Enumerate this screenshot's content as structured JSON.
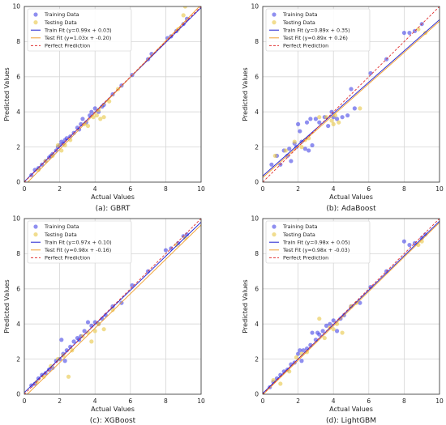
{
  "chart_data": [
    {
      "type": "scatter",
      "caption": "(a): GBRT",
      "xlabel": "Actual Values",
      "ylabel": "Predicted Values",
      "xlim": [
        0,
        10
      ],
      "ylim": [
        0,
        10
      ],
      "xticks": [
        0,
        2,
        4,
        6,
        8,
        10
      ],
      "yticks": [
        0,
        2,
        4,
        6,
        8,
        10
      ],
      "grid": true,
      "legend_position": "top-left",
      "series": [
        {
          "name": "Training Data",
          "kind": "scatter",
          "color": "#4a4ae6",
          "points": [
            [
              0.4,
              0.4
            ],
            [
              0.6,
              0.7
            ],
            [
              0.8,
              0.8
            ],
            [
              1.0,
              1.0
            ],
            [
              1.2,
              1.2
            ],
            [
              1.4,
              1.4
            ],
            [
              1.6,
              1.6
            ],
            [
              1.8,
              1.8
            ],
            [
              1.9,
              2.0
            ],
            [
              2.0,
              2.1
            ],
            [
              2.1,
              2.3
            ],
            [
              2.2,
              2.2
            ],
            [
              2.4,
              2.5
            ],
            [
              2.6,
              2.6
            ],
            [
              2.8,
              2.8
            ],
            [
              3.0,
              3.1
            ],
            [
              3.2,
              3.3
            ],
            [
              3.3,
              3.6
            ],
            [
              3.5,
              3.4
            ],
            [
              3.7,
              3.8
            ],
            [
              3.8,
              4.0
            ],
            [
              4.0,
              4.2
            ],
            [
              4.2,
              4.0
            ],
            [
              4.4,
              4.3
            ],
            [
              4.5,
              4.4
            ],
            [
              5.0,
              5.0
            ],
            [
              5.5,
              5.5
            ],
            [
              6.1,
              6.1
            ],
            [
              7.0,
              7.0
            ],
            [
              7.2,
              7.3
            ],
            [
              8.1,
              8.2
            ],
            [
              8.3,
              8.3
            ],
            [
              8.6,
              8.6
            ],
            [
              9.0,
              9.0
            ],
            [
              9.2,
              9.3
            ],
            [
              2.3,
              2.4
            ],
            [
              3.1,
              3.0
            ],
            [
              1.5,
              1.5
            ]
          ]
        },
        {
          "name": "Testing Data",
          "kind": "scatter",
          "color": "#e8c84a",
          "points": [
            [
              0.8,
              0.7
            ],
            [
              1.2,
              1.2
            ],
            [
              1.6,
              1.5
            ],
            [
              1.9,
              2.1
            ],
            [
              2.1,
              1.8
            ],
            [
              2.3,
              2.1
            ],
            [
              2.6,
              2.4
            ],
            [
              3.4,
              3.3
            ],
            [
              3.6,
              3.2
            ],
            [
              3.9,
              3.7
            ],
            [
              4.1,
              3.8
            ],
            [
              4.2,
              4.1
            ],
            [
              4.3,
              3.6
            ],
            [
              4.5,
              3.7
            ],
            [
              4.8,
              4.6
            ],
            [
              5.3,
              5.3
            ],
            [
              8.7,
              8.7
            ],
            [
              9.0,
              9.5
            ],
            [
              9.1,
              10.0
            ]
          ]
        },
        {
          "name": "Train Fit (y=0.99x + 0.03)",
          "kind": "line",
          "color": "#1f1fd0",
          "slope": 0.99,
          "intercept": 0.03,
          "dash": "solid"
        },
        {
          "name": "Test Fit (y=1.03x + -0.20)",
          "kind": "line",
          "color": "#f0a030",
          "slope": 1.03,
          "intercept": -0.2,
          "dash": "solid"
        },
        {
          "name": "Perfect Prediction",
          "kind": "line",
          "color": "#e03030",
          "slope": 1.0,
          "intercept": 0.0,
          "dash": "dashed"
        }
      ]
    },
    {
      "type": "scatter",
      "caption": "(b): AdaBoost",
      "xlabel": "Actual Values",
      "ylabel": "Predicted Values",
      "xlim": [
        0,
        10
      ],
      "ylim": [
        0,
        10
      ],
      "xticks": [
        0,
        2,
        4,
        6,
        8,
        10
      ],
      "yticks": [
        0,
        2,
        4,
        6,
        8,
        10
      ],
      "grid": true,
      "legend_position": "top-left",
      "series": [
        {
          "name": "Training Data",
          "kind": "scatter",
          "color": "#4a4ae6",
          "points": [
            [
              0.5,
              1.0
            ],
            [
              0.8,
              1.5
            ],
            [
              1.0,
              1.0
            ],
            [
              1.2,
              1.8
            ],
            [
              1.4,
              1.5
            ],
            [
              1.6,
              1.2
            ],
            [
              1.8,
              2.2
            ],
            [
              1.9,
              2.0
            ],
            [
              2.0,
              3.3
            ],
            [
              2.1,
              2.9
            ],
            [
              2.2,
              2.3
            ],
            [
              2.4,
              1.9
            ],
            [
              2.5,
              3.4
            ],
            [
              2.7,
              3.6
            ],
            [
              2.8,
              2.1
            ],
            [
              3.0,
              3.6
            ],
            [
              3.2,
              3.4
            ],
            [
              3.5,
              3.7
            ],
            [
              3.7,
              3.2
            ],
            [
              3.9,
              4.0
            ],
            [
              4.0,
              3.7
            ],
            [
              4.2,
              3.6
            ],
            [
              4.5,
              3.7
            ],
            [
              4.8,
              3.8
            ],
            [
              5.0,
              5.3
            ],
            [
              5.2,
              4.2
            ],
            [
              6.1,
              6.2
            ],
            [
              7.0,
              7.0
            ],
            [
              8.0,
              8.5
            ],
            [
              8.3,
              8.5
            ],
            [
              8.6,
              8.6
            ],
            [
              9.0,
              9.0
            ],
            [
              2.6,
              1.8
            ],
            [
              1.5,
              1.9
            ]
          ]
        },
        {
          "name": "Testing Data",
          "kind": "scatter",
          "color": "#e8c84a",
          "points": [
            [
              0.7,
              1.5
            ],
            [
              1.3,
              1.8
            ],
            [
              1.8,
              2.3
            ],
            [
              2.2,
              2.0
            ],
            [
              2.4,
              2.4
            ],
            [
              2.6,
              2.5
            ],
            [
              3.2,
              3.7
            ],
            [
              3.6,
              3.7
            ],
            [
              3.9,
              3.5
            ],
            [
              4.0,
              3.3
            ],
            [
              4.1,
              3.8
            ],
            [
              4.3,
              3.4
            ],
            [
              5.5,
              4.2
            ],
            [
              8.8,
              8.7
            ],
            [
              9.2,
              8.5
            ]
          ]
        },
        {
          "name": "Train Fit (y=0.89x + 0.35)",
          "kind": "line",
          "color": "#1f1fd0",
          "slope": 0.89,
          "intercept": 0.35,
          "dash": "solid"
        },
        {
          "name": "Test Fit (y=0.89x + 0.26)",
          "kind": "line",
          "color": "#f0a030",
          "slope": 0.89,
          "intercept": 0.26,
          "dash": "solid"
        },
        {
          "name": "Perfect Prediction",
          "kind": "line",
          "color": "#e03030",
          "slope": 1.0,
          "intercept": 0.0,
          "dash": "dashed"
        }
      ]
    },
    {
      "type": "scatter",
      "caption": "(c): XGBoost",
      "xlabel": "Actual Values",
      "ylabel": "Predicted Values",
      "xlim": [
        0,
        10
      ],
      "ylim": [
        0,
        10
      ],
      "xticks": [
        0,
        2,
        4,
        6,
        8,
        10
      ],
      "yticks": [
        0,
        2,
        4,
        6,
        8,
        10
      ],
      "grid": true,
      "legend_position": "top-left",
      "series": [
        {
          "name": "Training Data",
          "kind": "scatter",
          "color": "#4a4ae6",
          "points": [
            [
              0.4,
              0.5
            ],
            [
              0.6,
              0.6
            ],
            [
              0.8,
              0.9
            ],
            [
              1.0,
              1.1
            ],
            [
              1.2,
              1.2
            ],
            [
              1.4,
              1.4
            ],
            [
              1.6,
              1.5
            ],
            [
              1.8,
              1.9
            ],
            [
              2.0,
              2.0
            ],
            [
              2.1,
              3.1
            ],
            [
              2.2,
              2.3
            ],
            [
              2.4,
              2.5
            ],
            [
              2.6,
              2.7
            ],
            [
              2.8,
              3.0
            ],
            [
              3.0,
              3.2
            ],
            [
              3.2,
              3.3
            ],
            [
              3.4,
              3.6
            ],
            [
              3.6,
              4.1
            ],
            [
              3.8,
              3.9
            ],
            [
              4.0,
              4.1
            ],
            [
              4.2,
              4.0
            ],
            [
              4.4,
              4.3
            ],
            [
              4.6,
              4.5
            ],
            [
              5.0,
              5.0
            ],
            [
              5.5,
              5.2
            ],
            [
              6.1,
              6.2
            ],
            [
              7.0,
              7.0
            ],
            [
              8.0,
              8.2
            ],
            [
              8.3,
              8.3
            ],
            [
              8.7,
              8.6
            ],
            [
              9.0,
              9.0
            ],
            [
              9.2,
              9.1
            ],
            [
              2.3,
              1.9
            ],
            [
              3.1,
              3.1
            ]
          ]
        },
        {
          "name": "Testing Data",
          "kind": "scatter",
          "color": "#e8c84a",
          "points": [
            [
              0.7,
              0.7
            ],
            [
              1.1,
              1.0
            ],
            [
              1.5,
              1.6
            ],
            [
              1.9,
              2.0
            ],
            [
              2.2,
              2.2
            ],
            [
              2.5,
              1.0
            ],
            [
              2.7,
              2.5
            ],
            [
              3.3,
              3.3
            ],
            [
              3.6,
              3.5
            ],
            [
              3.8,
              3.0
            ],
            [
              4.0,
              3.6
            ],
            [
              4.2,
              4.0
            ],
            [
              4.5,
              3.7
            ],
            [
              5.0,
              4.8
            ],
            [
              8.6,
              8.5
            ],
            [
              9.1,
              8.9
            ]
          ]
        },
        {
          "name": "Train Fit (y=0.97x + 0.10)",
          "kind": "line",
          "color": "#1f1fd0",
          "slope": 0.97,
          "intercept": 0.1,
          "dash": "solid"
        },
        {
          "name": "Test Fit (y=0.98x + -0.16)",
          "kind": "line",
          "color": "#f0a030",
          "slope": 0.98,
          "intercept": -0.16,
          "dash": "solid"
        },
        {
          "name": "Perfect Prediction",
          "kind": "line",
          "color": "#e03030",
          "slope": 1.0,
          "intercept": 0.0,
          "dash": "dashed"
        }
      ]
    },
    {
      "type": "scatter",
      "caption": "(d): LightGBM",
      "xlabel": "Actual Values",
      "ylabel": "Predicted Values",
      "xlim": [
        0,
        10
      ],
      "ylim": [
        0,
        10
      ],
      "xticks": [
        0,
        2,
        4,
        6,
        8,
        10
      ],
      "yticks": [
        0,
        2,
        4,
        6,
        8,
        10
      ],
      "grid": true,
      "legend_position": "top-left",
      "series": [
        {
          "name": "Training Data",
          "kind": "scatter",
          "color": "#4a4ae6",
          "points": [
            [
              0.4,
              0.4
            ],
            [
              0.6,
              0.7
            ],
            [
              0.8,
              0.9
            ],
            [
              1.0,
              1.1
            ],
            [
              1.2,
              1.3
            ],
            [
              1.4,
              1.4
            ],
            [
              1.6,
              1.7
            ],
            [
              1.8,
              1.8
            ],
            [
              2.0,
              2.3
            ],
            [
              2.1,
              2.5
            ],
            [
              2.3,
              2.5
            ],
            [
              2.5,
              2.6
            ],
            [
              2.7,
              2.8
            ],
            [
              2.8,
              3.5
            ],
            [
              3.0,
              3.1
            ],
            [
              3.2,
              3.4
            ],
            [
              3.4,
              3.6
            ],
            [
              3.6,
              3.9
            ],
            [
              3.8,
              4.0
            ],
            [
              4.0,
              4.2
            ],
            [
              4.2,
              3.6
            ],
            [
              4.4,
              4.3
            ],
            [
              4.6,
              4.5
            ],
            [
              5.0,
              5.0
            ],
            [
              5.5,
              5.2
            ],
            [
              6.1,
              6.1
            ],
            [
              7.0,
              7.0
            ],
            [
              8.0,
              8.7
            ],
            [
              8.3,
              8.5
            ],
            [
              8.6,
              8.6
            ],
            [
              9.0,
              8.9
            ],
            [
              9.2,
              9.1
            ],
            [
              2.2,
              1.9
            ],
            [
              3.1,
              3.5
            ]
          ]
        },
        {
          "name": "Testing Data",
          "kind": "scatter",
          "color": "#e8c84a",
          "points": [
            [
              0.6,
              0.8
            ],
            [
              1.0,
              0.6
            ],
            [
              1.5,
              1.3
            ],
            [
              1.9,
              2.1
            ],
            [
              2.2,
              2.3
            ],
            [
              2.5,
              2.4
            ],
            [
              3.2,
              4.3
            ],
            [
              3.5,
              3.2
            ],
            [
              3.8,
              3.8
            ],
            [
              4.0,
              3.7
            ],
            [
              4.2,
              4.0
            ],
            [
              4.5,
              3.5
            ],
            [
              5.0,
              5.0
            ],
            [
              5.3,
              5.2
            ],
            [
              8.8,
              8.5
            ],
            [
              9.0,
              8.7
            ]
          ]
        },
        {
          "name": "Train Fit (y=0.98x + 0.05)",
          "kind": "line",
          "color": "#1f1fd0",
          "slope": 0.98,
          "intercept": 0.05,
          "dash": "solid"
        },
        {
          "name": "Test Fit (y=0.98x + -0.03)",
          "kind": "line",
          "color": "#f0a030",
          "slope": 0.98,
          "intercept": -0.03,
          "dash": "solid"
        },
        {
          "name": "Perfect Prediction",
          "kind": "line",
          "color": "#e03030",
          "slope": 1.0,
          "intercept": 0.0,
          "dash": "dashed"
        }
      ]
    }
  ]
}
